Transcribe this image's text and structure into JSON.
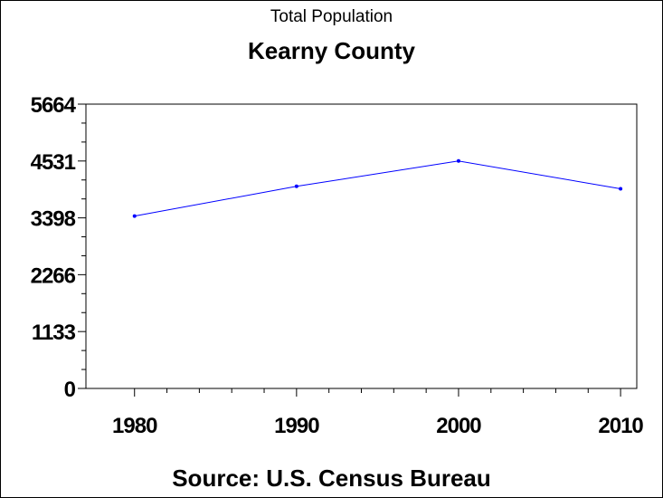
{
  "chart_data": {
    "type": "line",
    "title": "Total Population",
    "subtitle": "Kearny County",
    "source": "Source: U.S. Census Bureau",
    "xlabel": "",
    "ylabel": "",
    "x_ticks": [
      "1980",
      "1990",
      "2000",
      "2010"
    ],
    "y_ticks": [
      "0",
      "1133",
      "2266",
      "3398",
      "4531",
      "5664"
    ],
    "xlim": [
      1977,
      2011
    ],
    "ylim": [
      0,
      5664
    ],
    "grid": false,
    "series": [
      {
        "color": "#0000ff",
        "x": [
          1980,
          1990,
          2000,
          2010
        ],
        "values": [
          3435,
          4027,
          4531,
          3977
        ]
      }
    ]
  }
}
